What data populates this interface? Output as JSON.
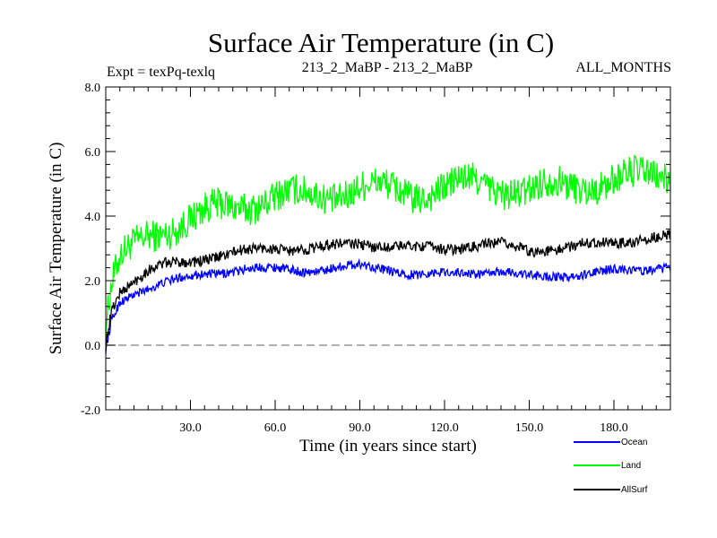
{
  "chart_data": {
    "type": "line",
    "title": "Surface Air Temperature (in C)",
    "subtitle_left": "Expt = texPq-texlq",
    "subtitle_center": "213_2_MaBP - 213_2_MaBP",
    "subtitle_right": "ALL_MONTHS",
    "xlabel": "Time (in years since start)",
    "ylabel": "Surface Air Temperature (in C)",
    "xlim": [
      0,
      200
    ],
    "ylim": [
      -2.0,
      8.0
    ],
    "xticks": [
      30,
      60,
      90,
      120,
      150,
      180
    ],
    "xtick_labels": [
      "30.0",
      "60.0",
      "90.0",
      "120.0",
      "150.0",
      "180.0"
    ],
    "yticks": [
      -2,
      0,
      2,
      4,
      6,
      8
    ],
    "ytick_labels": [
      "-2.0",
      "0.0",
      "2.0",
      "4.0",
      "6.0",
      "8.0"
    ],
    "reference_line": {
      "y": 0.0,
      "style": "dashed",
      "color": "#808080"
    },
    "anchor_years": [
      0,
      2,
      5,
      10,
      15,
      20,
      30,
      40,
      50,
      60,
      70,
      80,
      90,
      100,
      110,
      120,
      130,
      140,
      150,
      160,
      170,
      180,
      190,
      200
    ],
    "series": [
      {
        "name": "Ocean",
        "color": "#0000ff",
        "noise": 0.14,
        "values": [
          -0.2,
          0.7,
          1.3,
          1.6,
          1.8,
          1.95,
          2.1,
          2.25,
          2.4,
          2.35,
          2.3,
          2.4,
          2.45,
          2.35,
          2.2,
          2.2,
          2.25,
          2.3,
          2.1,
          2.15,
          2.2,
          2.3,
          2.35,
          2.45
        ]
      },
      {
        "name": "Land",
        "color": "#00ff00",
        "noise": 0.5,
        "values": [
          0.6,
          1.8,
          2.6,
          3.0,
          3.4,
          3.6,
          3.9,
          4.2,
          4.4,
          4.6,
          4.6,
          4.7,
          4.9,
          4.8,
          4.7,
          4.9,
          5.0,
          4.9,
          4.8,
          4.9,
          5.0,
          5.1,
          5.2,
          5.3
        ]
      },
      {
        "name": "AllSurf",
        "color": "#000000",
        "noise": 0.17,
        "values": [
          0.0,
          1.1,
          1.7,
          2.0,
          2.3,
          2.45,
          2.6,
          2.8,
          2.9,
          3.0,
          3.0,
          3.05,
          3.15,
          3.1,
          3.0,
          3.0,
          3.1,
          3.1,
          2.95,
          3.0,
          3.1,
          3.2,
          3.3,
          3.35
        ]
      }
    ],
    "legend": [
      {
        "label": "Ocean",
        "color": "#0000ff"
      },
      {
        "label": "Land",
        "color": "#00ff00"
      },
      {
        "label": "AllSurf",
        "color": "#000000"
      }
    ],
    "legend_position": "bottom-right"
  }
}
